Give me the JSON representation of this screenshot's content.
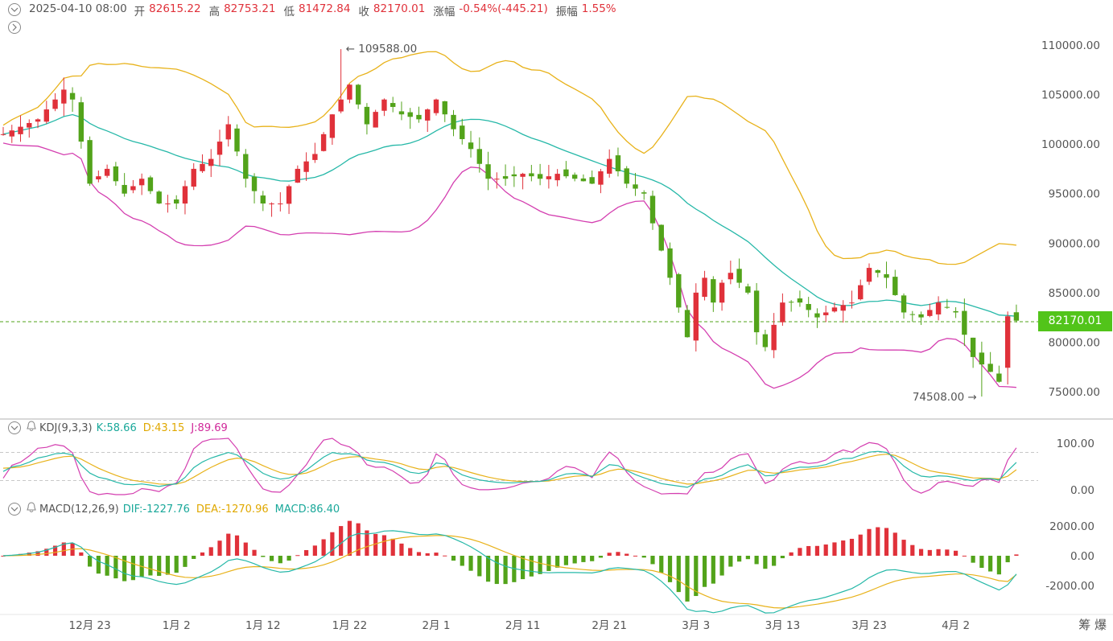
{
  "header": {
    "datetime": "2025-04-10 08:00",
    "open_label": "开",
    "open": "82615.22",
    "high_label": "高",
    "high": "82753.21",
    "low_label": "低",
    "low": "81472.84",
    "close_label": "收",
    "close": "82170.01",
    "change_label": "涨幅",
    "change": "-0.54%(-445.21)",
    "amplitude_label": "振幅",
    "amplitude": "1.55%"
  },
  "current_price": "82170.01",
  "annotations": {
    "high": "109588.00",
    "low": "74508.00"
  },
  "kdj": {
    "name": "KDJ(9,3,3)",
    "k": "K:58.66",
    "d": "D:43.15",
    "j": "J:89.69"
  },
  "macd": {
    "name": "MACD(12,26,9)",
    "dif": "DIF:-1227.76",
    "dea": "DEA:-1270.96",
    "macd": "MACD:86.40"
  },
  "bottom_right_label": "筹 爆",
  "colors": {
    "up": "#e0313a",
    "down": "#52a31a",
    "mid": "#26b8a8",
    "upper": "#e8b21a",
    "lower": "#d43fb0",
    "price_tag": "#52c41a"
  },
  "chart_data": [
    {
      "type": "candlestick",
      "title": "",
      "y_ticks": [
        "110000.00",
        "105000.00",
        "100000.00",
        "95000.00",
        "90000.00",
        "85000.00",
        "80000.00",
        "75000.00"
      ],
      "ylim": [
        72800,
        112500
      ],
      "x_tick_labels": [
        "12月 23",
        "1月 2",
        "1月 12",
        "1月 22",
        "2月 1",
        "2月 11",
        "2月 21",
        "3月 3",
        "3月 13",
        "3月 23",
        "4月 2"
      ],
      "x_tick_index": [
        10,
        20,
        30,
        40,
        50,
        60,
        70,
        80,
        90,
        100,
        110
      ],
      "candle_count": 118,
      "anchors_close": [
        [
          0,
          101000
        ],
        [
          4,
          102500
        ],
        [
          7,
          105500
        ],
        [
          8,
          104500
        ],
        [
          10,
          96000
        ],
        [
          12,
          97500
        ],
        [
          14,
          95000
        ],
        [
          16,
          96500
        ],
        [
          18,
          94000
        ],
        [
          20,
          94000
        ],
        [
          22,
          97500
        ],
        [
          24,
          98500
        ],
        [
          26,
          102000
        ],
        [
          28,
          96500
        ],
        [
          30,
          94000
        ],
        [
          32,
          94000
        ],
        [
          34,
          97500
        ],
        [
          36,
          99000
        ],
        [
          38,
          103000
        ],
        [
          40,
          106000
        ],
        [
          42,
          102000
        ],
        [
          44,
          104500
        ],
        [
          46,
          103000
        ],
        [
          48,
          102500
        ],
        [
          50,
          104500
        ],
        [
          52,
          101500
        ],
        [
          54,
          99500
        ],
        [
          56,
          96500
        ],
        [
          58,
          96500
        ],
        [
          60,
          97000
        ],
        [
          62,
          96500
        ],
        [
          64,
          97000
        ],
        [
          66,
          96500
        ],
        [
          68,
          96000
        ],
        [
          70,
          98500
        ],
        [
          72,
          96000
        ],
        [
          74,
          95000
        ],
        [
          75,
          92000
        ],
        [
          77,
          86500
        ],
        [
          79,
          80500
        ],
        [
          80,
          85000
        ],
        [
          81,
          86500
        ],
        [
          82,
          84000
        ],
        [
          83,
          86000
        ],
        [
          84,
          87000
        ],
        [
          85,
          86000
        ],
        [
          86,
          85000
        ],
        [
          87,
          81000
        ],
        [
          88,
          79500
        ],
        [
          90,
          84000
        ],
        [
          92,
          84000
        ],
        [
          94,
          82500
        ],
        [
          96,
          83500
        ],
        [
          98,
          84000
        ],
        [
          100,
          87500
        ],
        [
          102,
          86500
        ],
        [
          104,
          83000
        ],
        [
          106,
          82500
        ],
        [
          108,
          84000
        ],
        [
          110,
          83000
        ],
        [
          112,
          78500
        ],
        [
          114,
          77000
        ],
        [
          115,
          76000
        ],
        [
          116,
          82615
        ],
        [
          117,
          82170
        ]
      ],
      "high_marker": {
        "index": 39,
        "value": 109588
      },
      "low_marker": {
        "index": 113,
        "value": 74508
      },
      "indicators": [
        "BOLL mid",
        "BOLL upper",
        "BOLL lower"
      ]
    },
    {
      "type": "line",
      "name": "KDJ(9,3,3)",
      "y_ticks": [
        "100.00",
        "0.00"
      ],
      "ylim": [
        -10,
        110
      ],
      "latest": {
        "K": 58.66,
        "D": 43.15,
        "J": 89.69
      }
    },
    {
      "type": "bar",
      "name": "MACD(12,26,9)",
      "y_ticks": [
        "2000.00",
        "0.00",
        "-2000.00"
      ],
      "ylim": [
        -3000,
        2700
      ],
      "latest": {
        "DIF": -1227.76,
        "DEA": -1270.96,
        "MACD": 86.4
      }
    }
  ]
}
